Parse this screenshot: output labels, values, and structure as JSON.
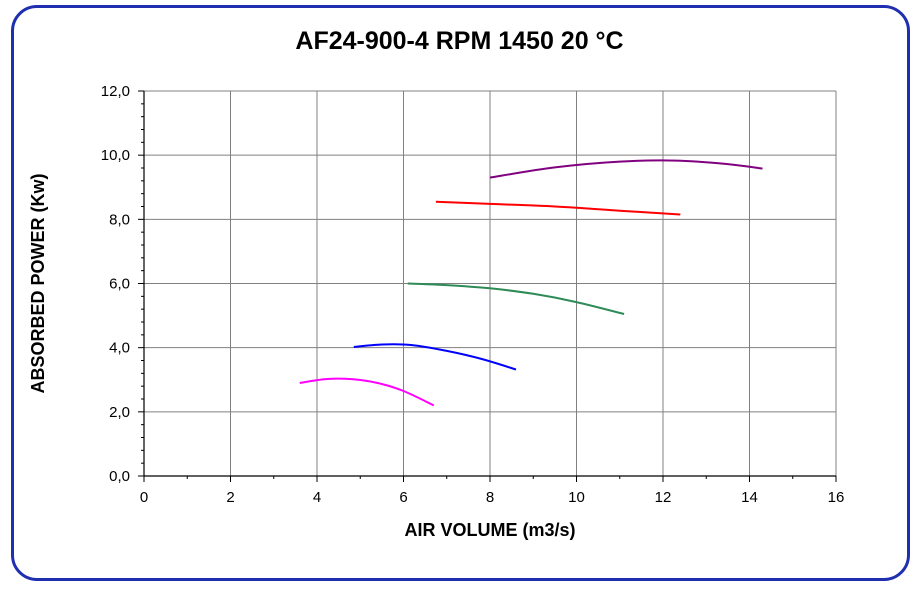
{
  "chart_data": {
    "type": "line",
    "title": "AF24-900-4 RPM 1450 20 °C",
    "xlabel": "AIR VOLUME (m3/s)",
    "ylabel": "ABSORBED POWER (Kw)",
    "xlim": [
      0,
      16
    ],
    "ylim": [
      0,
      12
    ],
    "x_ticks": [
      "0",
      "2",
      "4",
      "6",
      "8",
      "10",
      "12",
      "14",
      "16"
    ],
    "y_ticks": [
      "0,0",
      "2,0",
      "4,0",
      "6,0",
      "8,0",
      "10,0",
      "12,0"
    ],
    "grid": true,
    "series": [
      {
        "color": "#ff00ff",
        "points": [
          [
            3.6,
            2.9
          ],
          [
            4.2,
            3.02
          ],
          [
            4.8,
            3.02
          ],
          [
            5.4,
            2.9
          ],
          [
            6.0,
            2.65
          ],
          [
            6.7,
            2.2
          ]
        ]
      },
      {
        "color": "#0000ff",
        "points": [
          [
            4.85,
            4.02
          ],
          [
            5.5,
            4.1
          ],
          [
            6.2,
            4.08
          ],
          [
            7.0,
            3.9
          ],
          [
            7.8,
            3.65
          ],
          [
            8.6,
            3.32
          ]
        ]
      },
      {
        "color": "#2e8b57",
        "points": [
          [
            6.1,
            6.0
          ],
          [
            7.0,
            5.95
          ],
          [
            8.0,
            5.85
          ],
          [
            9.0,
            5.68
          ],
          [
            10.0,
            5.42
          ],
          [
            11.1,
            5.05
          ]
        ]
      },
      {
        "color": "#ff0000",
        "points": [
          [
            6.75,
            8.55
          ],
          [
            8.0,
            8.48
          ],
          [
            9.5,
            8.4
          ],
          [
            11.0,
            8.27
          ],
          [
            12.4,
            8.15
          ]
        ]
      },
      {
        "color": "#800080",
        "points": [
          [
            8.0,
            9.3
          ],
          [
            9.5,
            9.62
          ],
          [
            11.0,
            9.8
          ],
          [
            12.3,
            9.83
          ],
          [
            13.5,
            9.72
          ],
          [
            14.3,
            9.58
          ]
        ]
      }
    ]
  }
}
